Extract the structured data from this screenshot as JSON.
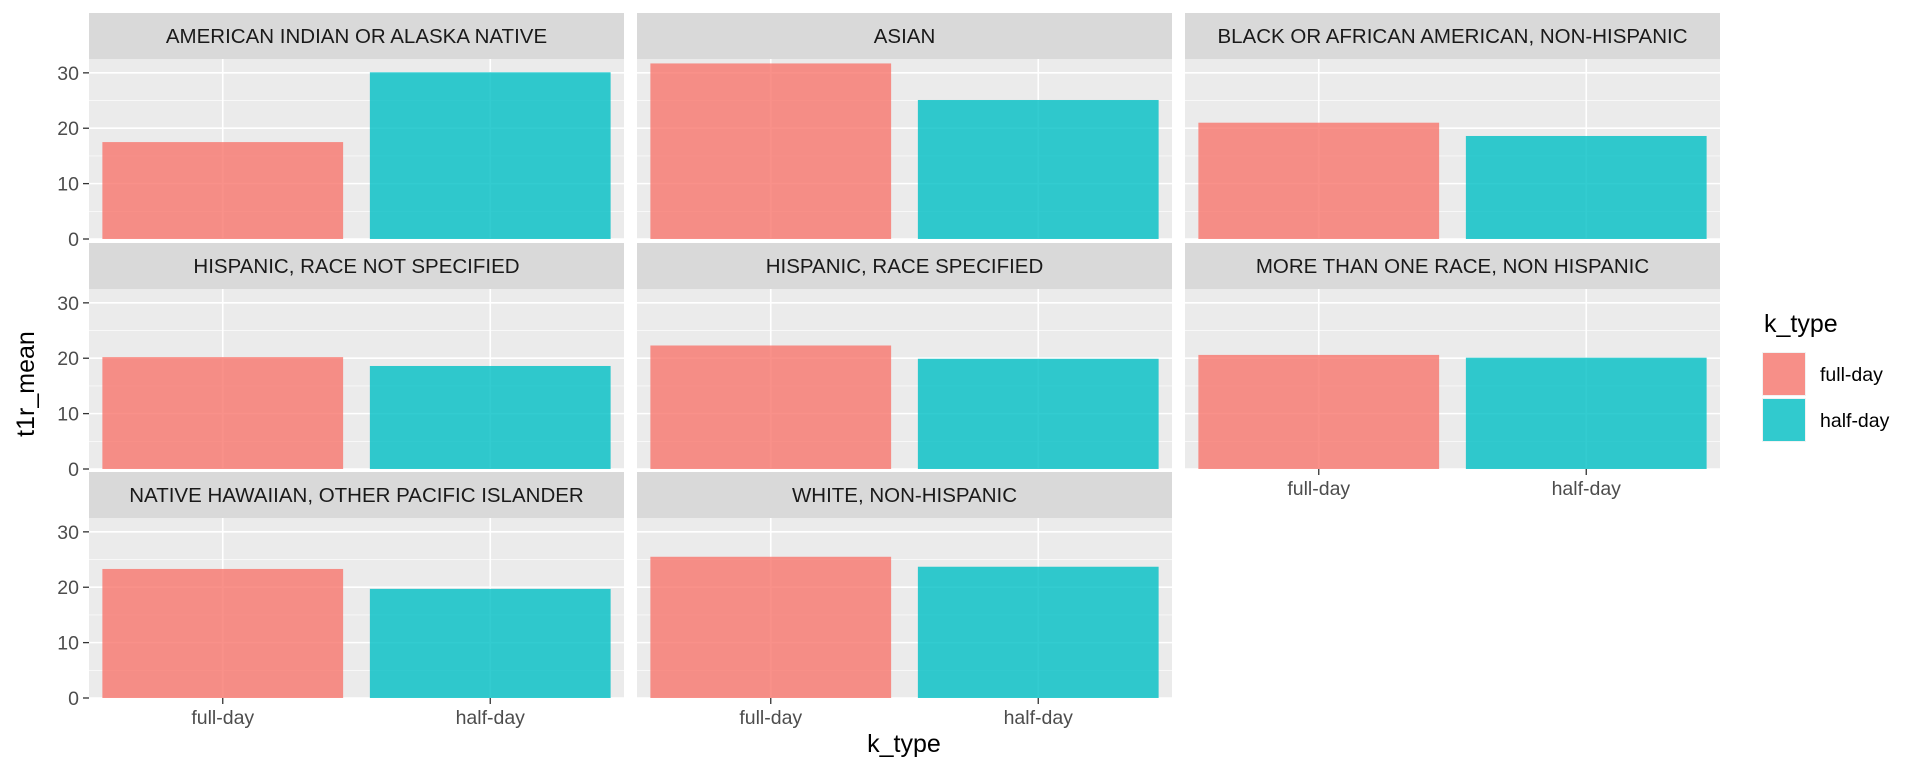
{
  "chart_data": {
    "type": "bar",
    "layout": "faceted",
    "xlabel": "k_type",
    "ylabel": "t1r_mean",
    "categories": [
      "full-day",
      "half-day"
    ],
    "ylim": [
      0,
      32.5
    ],
    "yticks": [
      0,
      10,
      20,
      30
    ],
    "grid": true,
    "legend": {
      "title": "k_type",
      "position": "right",
      "entries": [
        "full-day",
        "half-day"
      ]
    },
    "colors": {
      "full-day": "#F8766D",
      "half-day": "#00BFC4"
    },
    "bar_alpha": 0.8,
    "panel_background": "#EBEBEB",
    "strip_background": "#D9D9D9",
    "panels": [
      {
        "title": "AMERICAN INDIAN OR ALASKA NATIVE",
        "values": [
          17.5,
          30.1
        ]
      },
      {
        "title": "ASIAN",
        "values": [
          31.7,
          25.1
        ]
      },
      {
        "title": "BLACK OR AFRICAN AMERICAN, NON-HISPANIC",
        "values": [
          21.0,
          18.6
        ]
      },
      {
        "title": "HISPANIC, RACE NOT SPECIFIED",
        "values": [
          20.2,
          18.6
        ]
      },
      {
        "title": "HISPANIC, RACE SPECIFIED",
        "values": [
          22.3,
          19.9
        ]
      },
      {
        "title": "MORE THAN ONE RACE, NON HISPANIC",
        "values": [
          20.6,
          20.1
        ]
      },
      {
        "title": "NATIVE HAWAIIAN, OTHER PACIFIC ISLANDER",
        "values": [
          23.3,
          19.7
        ]
      },
      {
        "title": "WHITE, NON-HISPANIC",
        "values": [
          25.5,
          23.7
        ]
      }
    ]
  }
}
